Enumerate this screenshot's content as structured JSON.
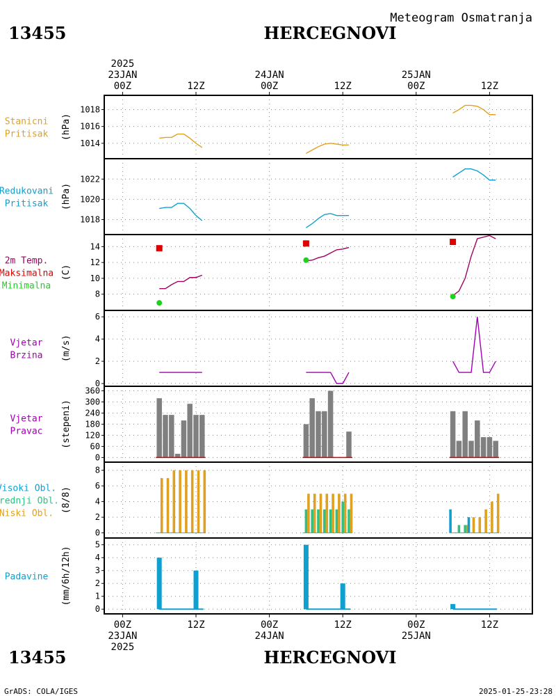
{
  "header": {
    "station_id": "13455",
    "station_name": "HERCEGNOVI",
    "subtitle": "Meteogram Osmatranja"
  },
  "footer": {
    "station_id": "13455",
    "station_name": "HERCEGNOVI",
    "credit": "GrADS: COLA/IGES",
    "timestamp": "2025-01-25-23:28"
  },
  "time_axis": {
    "top_labels": [
      {
        "lines": [
          "2025",
          "23JAN",
          "00Z"
        ]
      },
      {
        "lines": [
          "12Z"
        ]
      },
      {
        "lines": [
          "24JAN",
          "00Z"
        ]
      },
      {
        "lines": [
          "12Z"
        ]
      },
      {
        "lines": [
          "25JAN",
          "00Z"
        ]
      },
      {
        "lines": [
          "12Z"
        ]
      }
    ],
    "bottom_labels": [
      {
        "lines": [
          "00Z",
          "23JAN",
          "2025"
        ]
      },
      {
        "lines": [
          "12Z"
        ]
      },
      {
        "lines": [
          "00Z",
          "24JAN"
        ]
      },
      {
        "lines": [
          "12Z"
        ]
      },
      {
        "lines": [
          "00Z",
          "25JAN"
        ]
      },
      {
        "lines": [
          "12Z"
        ]
      }
    ]
  },
  "colors": {
    "station_pressure": "#e0a020",
    "reduced_pressure": "#10a0d0",
    "temperature": "#a00060",
    "max_temp": "#e00000",
    "min_temp": "#20d020",
    "wind": "#a000b0",
    "wind_dir_bar": "#808080",
    "wind_dir_base": "#e00000",
    "cloud_high": "#10a0d0",
    "cloud_mid": "#30c080",
    "cloud_low": "#e0a020",
    "precip": "#10a0d0"
  },
  "chart_data": [
    {
      "id": "station_pressure",
      "type": "line",
      "panel_label": [
        "Stanicni",
        "Pritisak"
      ],
      "label_colors": [
        "station_pressure",
        "station_pressure"
      ],
      "ylabel": "(hPa)",
      "ylim": [
        1012.5,
        1019.2
      ],
      "yticks": [
        1014,
        1016,
        1018
      ],
      "grid": true,
      "x_unit": "hours since 23JAN2025 00Z",
      "series": [
        {
          "color": "station_pressure",
          "segments": [
            [
              [
                6,
                1014.6
              ],
              [
                7,
                1014.7
              ],
              [
                8,
                1014.7
              ],
              [
                9,
                1015.1
              ],
              [
                10,
                1015.1
              ],
              [
                11,
                1014.6
              ],
              [
                12,
                1014.0
              ],
              [
                13,
                1013.5
              ]
            ],
            [
              [
                30,
                1012.8
              ],
              [
                31,
                1013.2
              ],
              [
                32,
                1013.6
              ],
              [
                33,
                1013.9
              ],
              [
                34,
                1014.0
              ],
              [
                35,
                1013.9
              ],
              [
                36,
                1013.8
              ],
              [
                37,
                1013.8
              ]
            ],
            [
              [
                54,
                1017.6
              ],
              [
                55,
                1018.0
              ],
              [
                56,
                1018.5
              ],
              [
                57,
                1018.5
              ],
              [
                58,
                1018.4
              ],
              [
                59,
                1018.0
              ],
              [
                60,
                1017.4
              ],
              [
                61,
                1017.4
              ]
            ]
          ]
        }
      ]
    },
    {
      "id": "reduced_pressure",
      "type": "line",
      "panel_label": [
        "Redukovani",
        "Pritisak"
      ],
      "label_colors": [
        "reduced_pressure",
        "reduced_pressure"
      ],
      "ylabel": "(hPa)",
      "ylim": [
        1016.8,
        1023.6
      ],
      "yticks": [
        1018,
        1020,
        1022
      ],
      "grid": true,
      "x_unit": "hours since 23JAN2025 00Z",
      "series": [
        {
          "color": "reduced_pressure",
          "segments": [
            [
              [
                6,
                1019.1
              ],
              [
                7,
                1019.2
              ],
              [
                8,
                1019.2
              ],
              [
                9,
                1019.6
              ],
              [
                10,
                1019.6
              ],
              [
                11,
                1019.1
              ],
              [
                12,
                1018.4
              ],
              [
                13,
                1017.9
              ]
            ],
            [
              [
                30,
                1017.2
              ],
              [
                31,
                1017.6
              ],
              [
                32,
                1018.1
              ],
              [
                33,
                1018.5
              ],
              [
                34,
                1018.6
              ],
              [
                35,
                1018.4
              ],
              [
                36,
                1018.4
              ],
              [
                37,
                1018.4
              ]
            ],
            [
              [
                54,
                1022.2
              ],
              [
                55,
                1022.6
              ],
              [
                56,
                1023.0
              ],
              [
                57,
                1023.0
              ],
              [
                58,
                1022.8
              ],
              [
                59,
                1022.4
              ],
              [
                60,
                1021.9
              ],
              [
                61,
                1021.9
              ]
            ]
          ]
        }
      ]
    },
    {
      "id": "temperature",
      "type": "line",
      "panel_label": [
        "2m Temp.",
        "Maksimalna",
        "Minimalna"
      ],
      "label_colors": [
        "temperature",
        "max_temp",
        "min_temp"
      ],
      "ylabel": "(C)",
      "ylim": [
        6.3,
        15.0
      ],
      "yticks": [
        8,
        10,
        12,
        14
      ],
      "grid": true,
      "x_unit": "hours since 23JAN2025 00Z",
      "series": [
        {
          "color": "temperature",
          "segments": [
            [
              [
                6,
                8.7
              ],
              [
                7,
                8.7
              ],
              [
                8,
                9.2
              ],
              [
                9,
                9.6
              ],
              [
                10,
                9.6
              ],
              [
                11,
                10.1
              ],
              [
                12,
                10.1
              ],
              [
                13,
                10.4
              ]
            ],
            [
              [
                30,
                12.2
              ],
              [
                31,
                12.3
              ],
              [
                32,
                12.6
              ],
              [
                33,
                12.8
              ],
              [
                34,
                13.2
              ],
              [
                35,
                13.6
              ],
              [
                36,
                13.7
              ],
              [
                37,
                13.9
              ]
            ],
            [
              [
                54,
                7.8
              ],
              [
                55,
                8.4
              ],
              [
                56,
                10.0
              ],
              [
                57,
                12.8
              ],
              [
                58,
                15.0
              ],
              [
                59,
                15.2
              ],
              [
                60,
                15.4
              ],
              [
                61,
                15.0
              ]
            ]
          ]
        }
      ],
      "max_points": [
        [
          6,
          13.8
        ],
        [
          30,
          14.4
        ],
        [
          54,
          14.6
        ]
      ],
      "min_points": [
        [
          6,
          6.9
        ],
        [
          30,
          12.3
        ],
        [
          54,
          7.7
        ]
      ]
    },
    {
      "id": "wind_speed",
      "type": "line",
      "panel_label": [
        "Vjetar",
        "Brzina"
      ],
      "label_colors": [
        "wind",
        "wind"
      ],
      "ylabel": "(m/s)",
      "ylim": [
        0,
        6.2
      ],
      "yticks": [
        0,
        2,
        4,
        6
      ],
      "grid": true,
      "x_unit": "hours since 23JAN2025 00Z",
      "series": [
        {
          "color": "wind",
          "segments": [
            [
              [
                6,
                1
              ],
              [
                13,
                1
              ]
            ],
            [
              [
                30,
                1
              ],
              [
                34,
                1
              ],
              [
                35,
                0
              ],
              [
                36,
                0
              ],
              [
                37,
                1
              ]
            ],
            [
              [
                54,
                2
              ],
              [
                55,
                1
              ],
              [
                56,
                1
              ],
              [
                57,
                1
              ],
              [
                58,
                6
              ],
              [
                59,
                1
              ],
              [
                60,
                1
              ],
              [
                61,
                2
              ]
            ]
          ]
        }
      ]
    },
    {
      "id": "wind_direction",
      "type": "bar",
      "panel_label": [
        "Vjetar",
        "Pravac"
      ],
      "label_colors": [
        "wind",
        "wind"
      ],
      "ylabel": "(stepeni)",
      "ylim": [
        -10,
        362
      ],
      "yticks": [
        0,
        60,
        120,
        180,
        240,
        300,
        360
      ],
      "grid": true,
      "x_unit": "hours since 23JAN2025 00Z",
      "bar_color": "wind_dir_bar",
      "base_color": "wind_dir_base",
      "x": [
        6,
        7,
        8,
        9,
        10,
        11,
        12,
        13,
        30,
        31,
        32,
        33,
        34,
        35,
        36,
        37,
        54,
        55,
        56,
        57,
        58,
        59,
        60,
        61
      ],
      "values": [
        320,
        230,
        230,
        20,
        200,
        290,
        230,
        230,
        180,
        320,
        250,
        250,
        360,
        0,
        0,
        140,
        250,
        90,
        250,
        90,
        200,
        110,
        110,
        90
      ]
    },
    {
      "id": "clouds",
      "type": "bar",
      "panel_label": [
        "Visoki Obl.",
        "Srednji Obl.",
        "Niski Obl."
      ],
      "label_colors": [
        "cloud_high",
        "cloud_mid",
        "cloud_low"
      ],
      "ylabel": "(8/8)",
      "ylim": [
        -0.3,
        8.5
      ],
      "yticks": [
        0,
        2,
        4,
        6,
        8
      ],
      "grid": true,
      "x_unit": "hours since 23JAN2025 00Z",
      "x": [
        6,
        7,
        8,
        9,
        10,
        11,
        12,
        13,
        30,
        31,
        32,
        33,
        34,
        35,
        36,
        37,
        54,
        55,
        56,
        57,
        58,
        59,
        60,
        61
      ],
      "series": [
        {
          "name": "Visoki Obl.",
          "color": "cloud_high",
          "values": [
            0,
            0,
            0,
            0,
            0,
            0,
            0,
            0,
            0,
            0,
            0,
            0,
            0,
            0,
            0,
            0,
            3,
            0,
            0,
            2,
            0,
            0,
            0,
            0
          ]
        },
        {
          "name": "Srednji Obl.",
          "color": "cloud_mid",
          "values": [
            0,
            0,
            0,
            0,
            0,
            0,
            0,
            0,
            3,
            3,
            3,
            3,
            3,
            3,
            4,
            3,
            0,
            1,
            1,
            0,
            0,
            0,
            0,
            0
          ]
        },
        {
          "name": "Niski Obl.",
          "color": "cloud_low",
          "values": [
            7,
            7,
            8,
            8,
            8,
            8,
            8,
            8,
            5,
            5,
            5,
            5,
            5,
            5,
            5,
            5,
            0,
            0,
            1,
            2,
            2,
            3,
            4,
            5
          ]
        }
      ]
    },
    {
      "id": "precipitation",
      "type": "bar",
      "panel_label": [
        "Padavine"
      ],
      "label_colors": [
        "precip"
      ],
      "ylabel": "(mm/6h/12h)",
      "ylim": [
        -0.15,
        5.2
      ],
      "yticks": [
        0,
        1,
        2,
        3,
        4,
        5
      ],
      "grid": true,
      "x_unit": "hours since 23JAN2025 00Z",
      "bar_color": "precip",
      "x": [
        6,
        12,
        30,
        36,
        54
      ],
      "values": [
        4.0,
        3.0,
        5.0,
        2.0,
        0.4
      ],
      "baseline_segments": [
        [
          6,
          13
        ],
        [
          30,
          37
        ],
        [
          54,
          61
        ]
      ]
    }
  ]
}
